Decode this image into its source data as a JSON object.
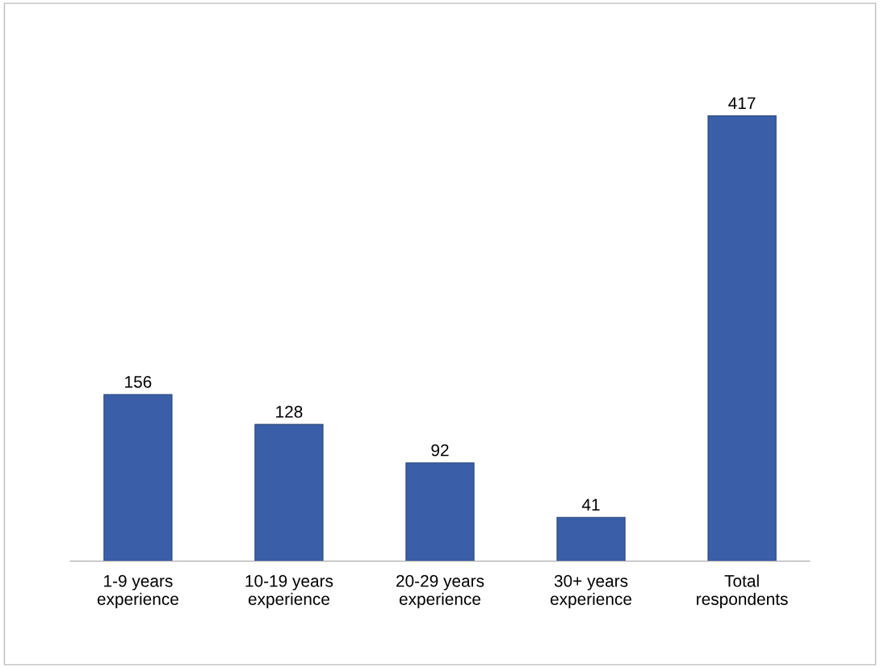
{
  "chart_data": {
    "type": "bar",
    "categories": [
      "1-9 years\nexperience",
      "10-19 years\nexperience",
      "20-29 years\nexperience",
      "30+ years\nexperience",
      "Total\nrespondents"
    ],
    "values": [
      156,
      128,
      92,
      41,
      417
    ],
    "color": "#3a5fa8",
    "data_labels": true,
    "grid": false,
    "legend": false
  }
}
